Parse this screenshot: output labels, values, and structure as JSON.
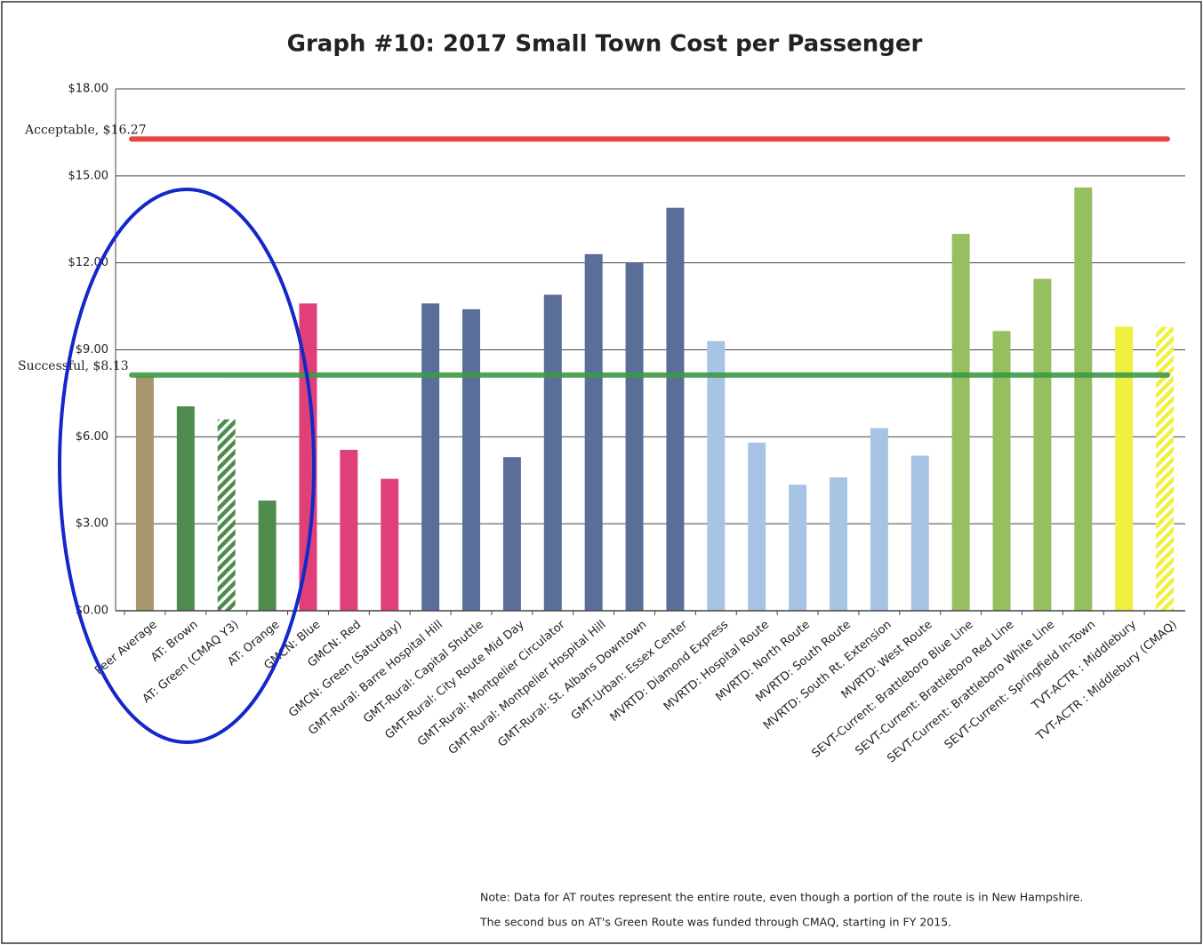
{
  "chart_data": {
    "type": "bar",
    "title": "Graph #10:  2017 Small Town Cost per Passenger",
    "categories": [
      "Peer Average",
      "AT: Brown",
      "AT: Green (CMAQ Y3)",
      "AT: Orange",
      "GMCN: Blue",
      "GMCN: Red",
      "GMCN: Green (Saturday)",
      "GMT-Rural: Barre Hospital Hill",
      "GMT-Rural: Capital Shuttle",
      "GMT-Rural: City Route Mid Day",
      "GMT-Rural: Montpelier Circulator",
      "GMT-Rural: Montpelier Hospital Hill",
      "GMT-Rural: St. Albans Downtown",
      "GMT-Urban: Essex Center",
      "MVRTD: Diamond Express",
      "MVRTD: Hospital Route",
      "MVRTD: North Route",
      "MVRTD: South Route",
      "MVRTD: South Rt. Extension",
      "MVRTD: West Route",
      "SEVT-Current: Brattleboro Blue Line",
      "SEVT-Current: Brattleboro Red Line",
      "SEVT-Current: Brattleboro White Line",
      "SEVT-Current: Springfield In-Town",
      "TVT-ACTR : Middlebury",
      "TVT-ACTR : Middlebury (CMAQ)"
    ],
    "values": [
      8.1,
      7.05,
      6.6,
      3.8,
      10.6,
      5.55,
      4.55,
      10.6,
      10.4,
      5.3,
      10.9,
      12.3,
      12.0,
      13.9,
      9.3,
      5.8,
      4.35,
      4.6,
      6.3,
      5.35,
      13.0,
      9.65,
      11.45,
      14.6,
      9.8,
      9.8
    ],
    "colors": [
      "#a89670",
      "#4e8c4e",
      "#4e8c4e",
      "#4e8c4e",
      "#e0407a",
      "#e0407a",
      "#e0407a",
      "#5a6e9a",
      "#5a6e9a",
      "#5a6e9a",
      "#5a6e9a",
      "#5a6e9a",
      "#5a6e9a",
      "#5a6e9a",
      "#a8c4e4",
      "#a8c4e4",
      "#a8c4e4",
      "#a8c4e4",
      "#a8c4e4",
      "#a8c4e4",
      "#96c060",
      "#96c060",
      "#96c060",
      "#96c060",
      "#f0f040",
      "#f0f040"
    ],
    "hatched": [
      false,
      false,
      true,
      false,
      false,
      false,
      false,
      false,
      false,
      false,
      false,
      false,
      false,
      false,
      false,
      false,
      false,
      false,
      false,
      false,
      false,
      false,
      false,
      false,
      false,
      true
    ],
    "ylim": [
      0,
      18
    ],
    "yticks": [
      {
        "value": 0,
        "label": "$0.00"
      },
      {
        "value": 3,
        "label": "$3.00"
      },
      {
        "value": 6,
        "label": "$6.00"
      },
      {
        "value": 9,
        "label": "$9.00"
      },
      {
        "value": 12,
        "label": "$12.00"
      },
      {
        "value": 15,
        "label": "$15.00"
      },
      {
        "value": 18,
        "label": "$18.00"
      }
    ],
    "grid": true,
    "reference_lines": [
      {
        "label": "Acceptable, $16.27",
        "value": 16.27,
        "color": "#e83030"
      },
      {
        "label": "Successful, $8.13",
        "value": 8.13,
        "color": "#3e9a46"
      }
    ],
    "notes": [
      "Note: Data for AT routes represent the entire route, even though a portion of the route is in New Hampshire.",
      "The second bus on AT's Green Route was funded through CMAQ, starting in FY 2015."
    ]
  }
}
